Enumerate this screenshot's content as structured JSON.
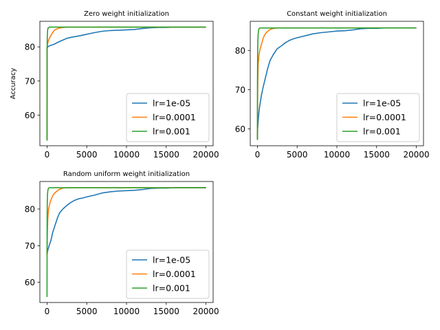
{
  "chart_data": [
    {
      "type": "line",
      "title": "Zero weight initialization",
      "xlabel": "",
      "ylabel": "Accuracy",
      "xlim": [
        -900,
        20900
      ],
      "ylim": [
        51,
        87.5
      ],
      "xticks": [
        0,
        5000,
        10000,
        15000,
        20000
      ],
      "yticks": [
        60,
        70,
        80
      ],
      "grid": false,
      "legend_position": "lower-right",
      "series": [
        {
          "name": "lr=1e-05",
          "color": "#1f77b4",
          "x": [
            0,
            10,
            30,
            60,
            100,
            200,
            400,
            700,
            1000,
            1500,
            2000,
            2500,
            3000,
            3500,
            4000,
            5000,
            6000,
            7000,
            8000,
            9000,
            10000,
            11000,
            12000,
            13000,
            14000,
            15000,
            16000,
            17000,
            18000,
            19000,
            20000
          ],
          "y": [
            52.5,
            79.5,
            80.0,
            79.8,
            80.0,
            80.2,
            80.4,
            80.6,
            80.9,
            81.5,
            82.0,
            82.5,
            82.8,
            83.0,
            83.2,
            83.7,
            84.2,
            84.6,
            84.8,
            84.9,
            85.0,
            85.1,
            85.4,
            85.6,
            85.7,
            85.7,
            85.8,
            85.8,
            85.8,
            85.8,
            85.8
          ]
        },
        {
          "name": "lr=0.0001",
          "color": "#ff7f0e",
          "x": [
            0,
            10,
            30,
            60,
            100,
            200,
            400,
            700,
            1000,
            1500,
            2000,
            2500,
            3000,
            5000,
            10000,
            15000,
            20000
          ],
          "y": [
            52.5,
            79.5,
            80.2,
            80.8,
            81.2,
            82.0,
            83.0,
            84.2,
            85.0,
            85.5,
            85.7,
            85.8,
            85.8,
            85.8,
            85.8,
            85.8,
            85.8
          ]
        },
        {
          "name": "lr=0.001",
          "color": "#2ca02c",
          "x": [
            0,
            10,
            30,
            60,
            100,
            150,
            200,
            300,
            500,
            1000,
            5000,
            10000,
            15000,
            20000
          ],
          "y": [
            52.5,
            79.0,
            82.5,
            84.5,
            85.3,
            85.6,
            85.7,
            85.8,
            85.8,
            85.8,
            85.8,
            85.8,
            85.8,
            85.8
          ]
        }
      ]
    },
    {
      "type": "line",
      "title": "Constant weight initialization",
      "xlabel": "",
      "ylabel": "",
      "xlim": [
        -900,
        20900
      ],
      "ylim": [
        55.7,
        87.5
      ],
      "xticks": [
        0,
        5000,
        10000,
        15000,
        20000
      ],
      "yticks": [
        60,
        70,
        80
      ],
      "grid": false,
      "legend_position": "lower-right",
      "series": [
        {
          "name": "lr=1e-05",
          "color": "#1f77b4",
          "x": [
            0,
            30,
            100,
            200,
            300,
            500,
            700,
            1000,
            1300,
            1600,
            2000,
            2500,
            3000,
            3500,
            4000,
            4500,
            5000,
            6000,
            7000,
            8000,
            9000,
            10000,
            11000,
            12000,
            13000,
            14000,
            15000,
            16000,
            17000,
            18000,
            19000,
            20000
          ],
          "y": [
            57.2,
            60.0,
            62.0,
            64.5,
            66.0,
            68.5,
            70.5,
            73.0,
            75.5,
            77.5,
            79.0,
            80.5,
            81.2,
            82.0,
            82.6,
            83.0,
            83.3,
            83.8,
            84.3,
            84.6,
            84.8,
            85.0,
            85.1,
            85.3,
            85.6,
            85.7,
            85.7,
            85.8,
            85.8,
            85.8,
            85.8,
            85.8
          ]
        },
        {
          "name": "lr=0.0001",
          "color": "#ff7f0e",
          "x": [
            0,
            20,
            50,
            100,
            200,
            350,
            500,
            700,
            900,
            1200,
            1500,
            2000,
            2500,
            3000,
            5000,
            10000,
            15000,
            20000
          ],
          "y": [
            57.2,
            66.0,
            72.0,
            76.5,
            79.0,
            80.5,
            81.5,
            83.0,
            84.0,
            84.8,
            85.3,
            85.7,
            85.8,
            85.8,
            85.8,
            85.8,
            85.8,
            85.8
          ]
        },
        {
          "name": "lr=0.001",
          "color": "#2ca02c",
          "x": [
            0,
            10,
            30,
            60,
            100,
            150,
            200,
            300,
            500,
            1000,
            5000,
            10000,
            15000,
            20000
          ],
          "y": [
            57.2,
            72.0,
            79.0,
            82.5,
            84.3,
            85.2,
            85.6,
            85.8,
            85.8,
            85.8,
            85.8,
            85.8,
            85.8,
            85.8
          ]
        }
      ]
    },
    {
      "type": "line",
      "title": "Random uniform weight initialization",
      "xlabel": "",
      "ylabel": "",
      "xlim": [
        -900,
        20900
      ],
      "ylim": [
        54.5,
        87.5
      ],
      "xticks": [
        0,
        5000,
        10000,
        15000,
        20000
      ],
      "yticks": [
        60,
        70,
        80
      ],
      "grid": false,
      "legend_position": "lower-right",
      "series": [
        {
          "name": "lr=1e-05",
          "color": "#1f77b4",
          "x": [
            0,
            30,
            100,
            200,
            300,
            500,
            700,
            1000,
            1300,
            1600,
            2000,
            2500,
            3000,
            3500,
            4000,
            4500,
            5000,
            6000,
            7000,
            8000,
            9000,
            10000,
            11000,
            12000,
            13000,
            14000,
            15000,
            16000,
            17000,
            18000,
            19000,
            20000
          ],
          "y": [
            67.5,
            68.0,
            68.8,
            69.5,
            70.2,
            71.5,
            73.5,
            75.5,
            77.5,
            79.0,
            80.0,
            81.0,
            81.8,
            82.4,
            82.8,
            83.0,
            83.3,
            83.8,
            84.4,
            84.7,
            84.9,
            85.0,
            85.1,
            85.3,
            85.6,
            85.7,
            85.7,
            85.8,
            85.8,
            85.8,
            85.8,
            85.8
          ]
        },
        {
          "name": "lr=0.0001",
          "color": "#ff7f0e",
          "x": [
            0,
            20,
            50,
            100,
            200,
            350,
            500,
            700,
            900,
            1200,
            1500,
            2000,
            2500,
            3000,
            5000,
            10000,
            15000,
            20000
          ],
          "y": [
            67.5,
            70.0,
            74.0,
            77.5,
            80.0,
            81.5,
            82.5,
            83.5,
            84.2,
            84.8,
            85.3,
            85.7,
            85.8,
            85.8,
            85.8,
            85.8,
            85.8,
            85.8
          ]
        },
        {
          "name": "lr=0.001",
          "color": "#2ca02c",
          "x": [
            0,
            10,
            30,
            60,
            100,
            150,
            200,
            300,
            500,
            1000,
            5000,
            10000,
            15000,
            20000
          ],
          "y": [
            56.0,
            76.0,
            81.5,
            84.0,
            85.0,
            85.5,
            85.7,
            85.8,
            85.8,
            85.8,
            85.8,
            85.8,
            85.8,
            85.8
          ]
        }
      ]
    }
  ]
}
